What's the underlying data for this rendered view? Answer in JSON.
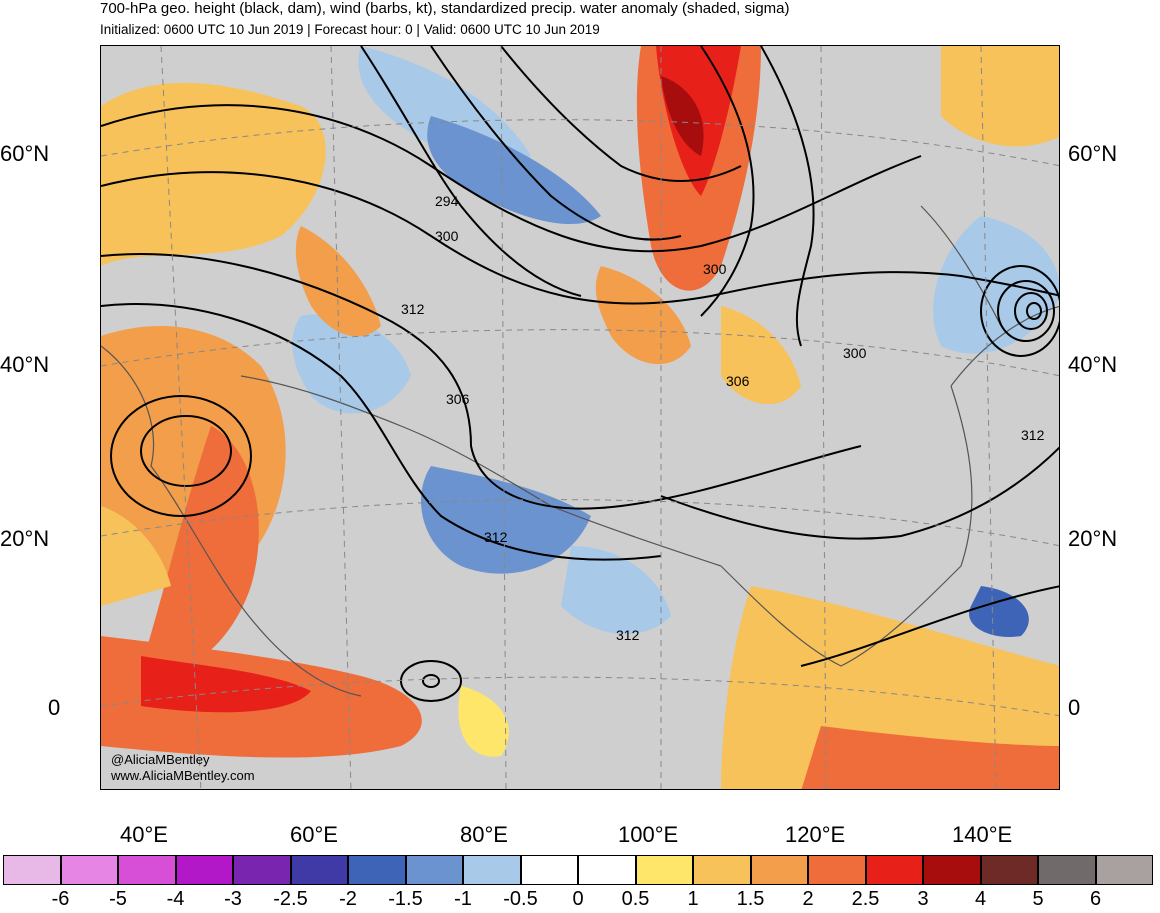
{
  "header": {
    "title": "700-hPa geo. height (black, dam), wind (barbs, kt), standardized precip. water anomaly (shaded, sigma)",
    "subtitle": "Initialized: 0600 UTC 10 Jun 2019 | Forecast hour: 0 | Valid: 0600 UTC 10 Jun 2019"
  },
  "map": {
    "lat_labels": [
      "60°N",
      "40°N",
      "20°N",
      "0"
    ],
    "lon_labels": [
      "40°E",
      "60°E",
      "80°E",
      "100°E",
      "120°E",
      "140°E"
    ],
    "contour_labels": [
      "294",
      "300",
      "312",
      "306",
      "300",
      "306",
      "300",
      "312",
      "312",
      "312"
    ],
    "credit_handle": "@AliciaMBentley",
    "credit_url": "www.AliciaMBentley.com"
  },
  "colorbar": {
    "colors": [
      "#e8b8e6",
      "#e685e4",
      "#d64fd6",
      "#b217c8",
      "#7a25b0",
      "#3f3aa6",
      "#3e64b8",
      "#6b93cf",
      "#a9c9e8",
      "#ffffff",
      "#ffffff",
      "#fde66a",
      "#f7c25a",
      "#f29e4a",
      "#ee6d3a",
      "#e8201a",
      "#a80d0d",
      "#6e2a26",
      "#716a6a",
      "#a9a0a0"
    ],
    "labels": [
      "-6",
      "-5",
      "-4",
      "-3",
      "-2.5",
      "-2",
      "-1.5",
      "-1",
      "-0.5",
      "0",
      "0.5",
      "1",
      "1.5",
      "2",
      "2.5",
      "3",
      "4",
      "5",
      "6"
    ]
  }
}
